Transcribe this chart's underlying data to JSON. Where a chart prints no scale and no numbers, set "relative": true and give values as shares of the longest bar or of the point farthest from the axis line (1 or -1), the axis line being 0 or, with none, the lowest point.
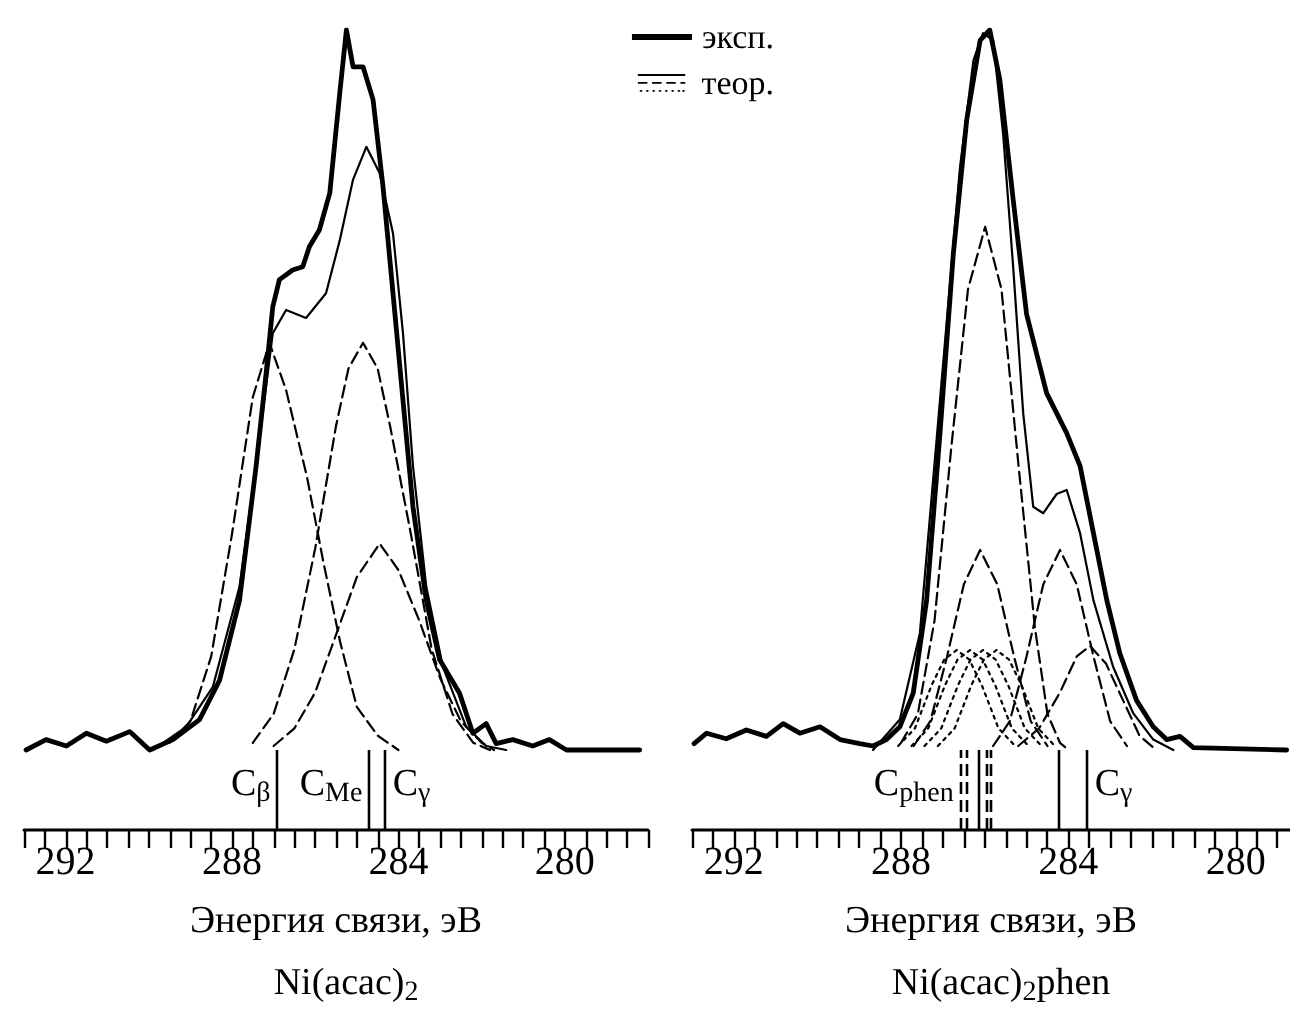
{
  "chart_data": [
    {
      "type": "line",
      "title": "Ni(acac)$_{2}$",
      "xlabel": "Энергия связи, эВ",
      "relative": true,
      "marker": "none",
      "legend": "top right",
      "xlim": [
        293,
        278
      ],
      "xticks": [
        {
          "value": 293,
          "label": null
        },
        {
          "value": 292.5,
          "label": null
        },
        292,
        {
          "value": 291.5,
          "label": null
        },
        {
          "value": 291,
          "label": null
        },
        {
          "value": 290.5,
          "label": null
        },
        {
          "value": 290,
          "label": null
        },
        {
          "value": 289.5,
          "label": null
        },
        {
          "value": 289,
          "label": null
        },
        {
          "value": 288.5,
          "label": null
        },
        288,
        {
          "value": 287.5,
          "label": null
        },
        {
          "value": 287,
          "label": null
        },
        {
          "value": 286.5,
          "label": null
        },
        {
          "value": 286,
          "label": null
        },
        {
          "value": 285.5,
          "label": null
        },
        {
          "value": 285,
          "label": null
        },
        {
          "value": 284.5,
          "label": null
        },
        284,
        {
          "value": 283.5,
          "label": null
        },
        {
          "value": 283,
          "label": null
        },
        {
          "value": 282.5,
          "label": null
        },
        {
          "value": 282,
          "label": null
        },
        {
          "value": 281.5,
          "label": null
        },
        {
          "value": 281,
          "label": null
        },
        {
          "value": 280.5,
          "label": null
        },
        280,
        {
          "value": 279.5,
          "label": null
        },
        {
          "value": 279,
          "label": null
        },
        {
          "value": 278.5,
          "label": null
        },
        {
          "value": 278,
          "label": null
        }
      ],
      "ref_lines": [
        {
          "axis": "x",
          "value": 286.93,
          "label": "C$_{β}$",
          "line_style": "solid",
          "color": "#000000"
        },
        {
          "axis": "x",
          "value": 284.72,
          "label": "C$_{Me}$",
          "line_style": "solid",
          "color": "#000000"
        },
        {
          "axis": "x",
          "value": 284.33,
          "label": "C$_{γ}$",
          "line_style": "solid",
          "color": "#000000"
        }
      ],
      "series": [
        {
          "name": "эксп.",
          "color": "#000000",
          "line_style": "solid",
          "x": [
            292.95,
            292.47,
            291.98,
            291.5,
            291.02,
            290.46,
            289.98,
            289.42,
            288.78,
            288.3,
            287.82,
            287.42,
            287.18,
            287.02,
            286.86,
            286.54,
            286.3,
            286.14,
            285.9,
            285.65,
            285.41,
            285.25,
            285.09,
            284.85,
            284.61,
            284.37,
            284.13,
            283.89,
            283.65,
            283.33,
            283.01,
            282.53,
            282.21,
            281.89,
            281.65,
            281.25,
            280.77,
            280.37,
            279.96,
            278.2
          ],
          "values": [
            0.1,
            0.113,
            0.105,
            0.121,
            0.111,
            0.123,
            0.1,
            0.113,
            0.138,
            0.187,
            0.287,
            0.455,
            0.571,
            0.654,
            0.688,
            0.7,
            0.704,
            0.729,
            0.75,
            0.796,
            0.921,
            1,
            0.954,
            0.954,
            0.913,
            0.804,
            0.671,
            0.537,
            0.404,
            0.287,
            0.213,
            0.171,
            0.121,
            0.133,
            0.108,
            0.113,
            0.105,
            0.113,
            0.1,
            0.1
          ]
        },
        {
          "name": "теор.",
          "color": "#000000",
          "line_style": "solid",
          "x": [
            289.9,
            289.1,
            288.46,
            287.82,
            287.34,
            287.02,
            286.7,
            286.22,
            285.74,
            285.41,
            285.09,
            284.77,
            284.45,
            284.13,
            283.89,
            283.65,
            283.33,
            282.93,
            282.37,
            281.89,
            281.41
          ],
          "values": [
            0.1,
            0.129,
            0.179,
            0.304,
            0.488,
            0.621,
            0.65,
            0.64,
            0.671,
            0.737,
            0.813,
            0.854,
            0.821,
            0.746,
            0.621,
            0.455,
            0.304,
            0.204,
            0.129,
            0.105,
            0.1
          ]
        },
        {
          "color": "#000000",
          "line_style": "dashed",
          "x": [
            289.5,
            289,
            288.5,
            288,
            287.5,
            287.1,
            286.7,
            286.2,
            285.8,
            285.4,
            285,
            284.5,
            284
          ],
          "values": [
            0.109,
            0.136,
            0.217,
            0.37,
            0.541,
            0.609,
            0.55,
            0.442,
            0.334,
            0.235,
            0.154,
            0.118,
            0.1
          ]
        },
        {
          "color": "#000000",
          "line_style": "dashed",
          "x": [
            287.5,
            287,
            286.5,
            286,
            285.5,
            285.2,
            284.85,
            284.5,
            284.2,
            283.7,
            283.2,
            282.7,
            282.2,
            281.8
          ],
          "values": [
            0.109,
            0.145,
            0.226,
            0.352,
            0.505,
            0.577,
            0.609,
            0.577,
            0.505,
            0.37,
            0.226,
            0.145,
            0.109,
            0.1
          ]
        },
        {
          "color": "#000000",
          "line_style": "dashed",
          "x": [
            287,
            286.5,
            286,
            285.5,
            285,
            284.45,
            284,
            283.5,
            283,
            282.5,
            282,
            281.7
          ],
          "values": [
            0.105,
            0.127,
            0.172,
            0.244,
            0.316,
            0.358,
            0.325,
            0.262,
            0.19,
            0.136,
            0.109,
            0.1
          ]
        }
      ]
    },
    {
      "type": "line",
      "title": "Ni(acac)$_{2}$phen",
      "xlabel": "Энергия связи, эВ",
      "relative": true,
      "marker": "none",
      "xlim": [
        293,
        278.7
      ],
      "xticks": [
        {
          "value": 293,
          "label": null
        },
        {
          "value": 292.5,
          "label": null
        },
        292,
        {
          "value": 291.5,
          "label": null
        },
        {
          "value": 291,
          "label": null
        },
        {
          "value": 290.5,
          "label": null
        },
        {
          "value": 290,
          "label": null
        },
        {
          "value": 289.5,
          "label": null
        },
        {
          "value": 289,
          "label": null
        },
        {
          "value": 288.5,
          "label": null
        },
        288,
        {
          "value": 287.5,
          "label": null
        },
        {
          "value": 287,
          "label": null
        },
        {
          "value": 286.5,
          "label": null
        },
        {
          "value": 286,
          "label": null
        },
        {
          "value": 285.5,
          "label": null
        },
        {
          "value": 285,
          "label": null
        },
        {
          "value": 284.5,
          "label": null
        },
        284,
        {
          "value": 283.5,
          "label": null
        },
        {
          "value": 283,
          "label": null
        },
        {
          "value": 282.5,
          "label": null
        },
        {
          "value": 282,
          "label": null
        },
        {
          "value": 281.5,
          "label": null
        },
        {
          "value": 281,
          "label": null
        },
        {
          "value": 280.5,
          "label": null
        },
        280,
        {
          "value": 279.5,
          "label": null
        },
        {
          "value": 279,
          "label": null
        }
      ],
      "ref_lines": [
        {
          "axis": "x",
          "value": 286.6,
          "label": "C$_{phen}$",
          "line_style": "dashed",
          "color": "#000000"
        },
        {
          "axis": "x",
          "value": 286.44,
          "line_style": "dashed",
          "color": "#000000"
        },
        {
          "axis": "x",
          "value": 286.16,
          "line_style": "solid",
          "color": "#000000"
        },
        {
          "axis": "x",
          "value": 285.98,
          "line_style": "dashed",
          "color": "#000000"
        },
        {
          "axis": "x",
          "value": 285.84,
          "line_style": "dashed",
          "color": "#000000"
        },
        {
          "axis": "x",
          "value": 284.25,
          "line_style": "solid",
          "color": "#000000"
        },
        {
          "axis": "x",
          "value": 283.56,
          "label": "C$_{γ}$",
          "line_style": "solid",
          "color": "#000000"
        }
      ],
      "series": [
        {
          "color": "#000000",
          "line_style": "solid",
          "x": [
            292.95,
            292.65,
            292.18,
            291.7,
            291.22,
            290.82,
            290.42,
            289.94,
            289.46,
            288.99,
            288.67,
            288.35,
            288.03,
            287.71,
            287.39,
            287.07,
            286.75,
            286.43,
            286.11,
            285.88,
            285.64,
            285.32,
            285,
            284.52,
            284.04,
            283.72,
            283.4,
            283.08,
            282.77,
            282.37,
            281.97,
            281.65,
            281.33,
            281.01,
            278.78
          ],
          "values": [
            0.108,
            0.121,
            0.114,
            0.125,
            0.117,
            0.133,
            0.121,
            0.129,
            0.113,
            0.108,
            0.105,
            0.113,
            0.129,
            0.171,
            0.287,
            0.496,
            0.721,
            0.888,
            0.987,
            1,
            0.938,
            0.788,
            0.645,
            0.546,
            0.496,
            0.455,
            0.371,
            0.287,
            0.221,
            0.162,
            0.129,
            0.113,
            0.117,
            0.103,
            0.1
          ]
        },
        {
          "color": "#000000",
          "line_style": "solid",
          "x": [
            288.67,
            288.03,
            287.55,
            287.07,
            286.59,
            286.27,
            286.04,
            285.8,
            285.56,
            285.32,
            285.08,
            284.84,
            284.6,
            284.28,
            284.04,
            283.72,
            283.4,
            282.93,
            282.45,
            281.97,
            281.49
          ],
          "values": [
            0.1,
            0.138,
            0.246,
            0.537,
            0.829,
            0.962,
            0.996,
            0.987,
            0.87,
            0.704,
            0.521,
            0.404,
            0.396,
            0.42,
            0.425,
            0.371,
            0.287,
            0.204,
            0.146,
            0.113,
            0.1
          ]
        },
        {
          "color": "#000000",
          "line_style": "dashed",
          "x": [
            288,
            287.6,
            287.2,
            286.8,
            286.4,
            285.99,
            285.6,
            285.2,
            284.8,
            284.5,
            284.2,
            284
          ],
          "values": [
            0.109,
            0.145,
            0.262,
            0.478,
            0.676,
            0.754,
            0.676,
            0.46,
            0.253,
            0.145,
            0.109,
            0.1
          ]
        },
        {
          "color": "#000000",
          "line_style": "dashed",
          "x": [
            287.7,
            287.3,
            286.9,
            286.5,
            286.11,
            285.7,
            285.3,
            284.9,
            284.5
          ],
          "values": [
            0.105,
            0.136,
            0.217,
            0.307,
            0.35,
            0.307,
            0.217,
            0.136,
            0.105
          ]
        },
        {
          "color": "#000000",
          "line_style": "dashed",
          "x": [
            285.8,
            285.4,
            285,
            284.6,
            284.2,
            283.8,
            283.4,
            283,
            282.6
          ],
          "values": [
            0.105,
            0.136,
            0.217,
            0.307,
            0.35,
            0.307,
            0.217,
            0.136,
            0.105
          ]
        },
        {
          "color": "#000000",
          "line_style": "dashed",
          "x": [
            285.2,
            284.7,
            284.2,
            283.8,
            283.48,
            283.1,
            282.7,
            282.3,
            281.9
          ],
          "values": [
            0.105,
            0.127,
            0.172,
            0.217,
            0.23,
            0.208,
            0.163,
            0.118,
            0.1
          ]
        },
        {
          "color": "#000000",
          "line_style": "dotted",
          "x": [
            288.07,
            287.67,
            287.27,
            286.97,
            286.67,
            286.37,
            286.07,
            285.67,
            285.27
          ],
          "values": [
            0.105,
            0.127,
            0.181,
            0.213,
            0.225,
            0.213,
            0.181,
            0.127,
            0.105
          ]
        },
        {
          "color": "#000000",
          "line_style": "dotted",
          "x": [
            287.75,
            287.35,
            286.95,
            286.65,
            286.35,
            286.05,
            285.75,
            285.35,
            284.95
          ],
          "values": [
            0.105,
            0.127,
            0.181,
            0.213,
            0.225,
            0.213,
            0.181,
            0.127,
            0.105
          ]
        },
        {
          "color": "#000000",
          "line_style": "dotted",
          "x": [
            287.44,
            287.04,
            286.64,
            286.34,
            286.04,
            285.74,
            285.44,
            285.04,
            284.64
          ],
          "values": [
            0.105,
            0.127,
            0.181,
            0.213,
            0.225,
            0.213,
            0.181,
            0.127,
            0.105
          ]
        },
        {
          "color": "#000000",
          "line_style": "dotted",
          "x": [
            287.12,
            286.72,
            286.32,
            286.02,
            285.72,
            285.42,
            285.12,
            284.72,
            284.32
          ],
          "values": [
            0.105,
            0.127,
            0.181,
            0.213,
            0.225,
            0.213,
            0.181,
            0.127,
            0.105
          ]
        }
      ]
    }
  ]
}
